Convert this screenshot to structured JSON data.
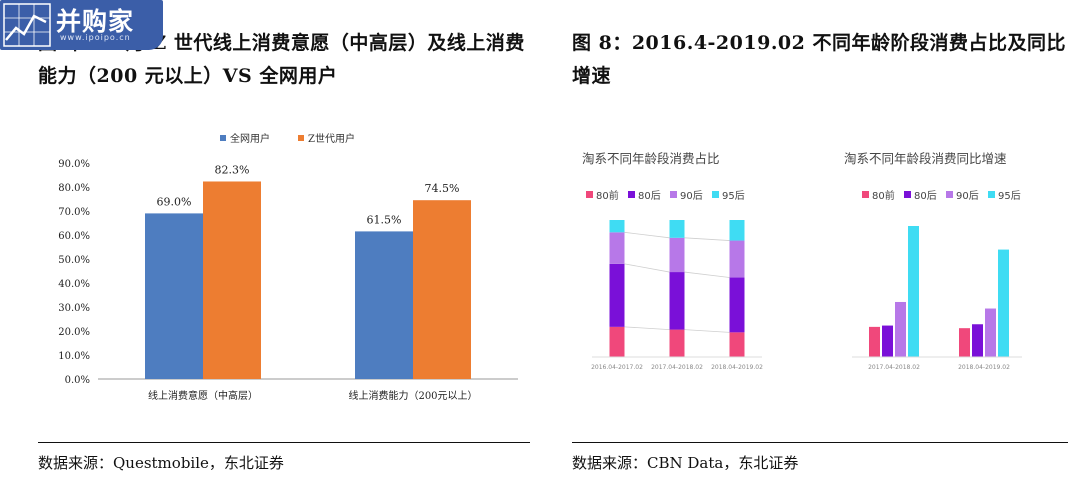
{
  "left": {
    "title": "图 年 11 月 Z 世代线上消费意愿（中高层）及线上消费能力（200 元以上）VS 全网用户",
    "source": "数据来源：Questmobile，东北证券"
  },
  "right": {
    "title": "图 8：2016.4-2019.02 不同年龄阶段消费占比及同比增速",
    "source": "数据来源：CBN Data，东北证券",
    "chart1_title": "淘系不同年龄段消费占比",
    "chart2_title": "淘系不同年龄段消费同比增速"
  },
  "logo": {
    "text": "并购家",
    "url": "www.ipoipo.cn"
  },
  "colors": {
    "all_users": "#4e7dc0",
    "z_users": "#ed7d31",
    "before80": "#f0487b",
    "post80": "#7a10d8",
    "post90": "#b778e8",
    "post95": "#3fdcf3",
    "logo_bg": "#3b5ea8"
  },
  "chart_data": [
    {
      "type": "bar",
      "categories": [
        "线上消费意愿（中高层）",
        "线上消费能力（200元以上）"
      ],
      "series": [
        {
          "name": "全网用户",
          "values": [
            69.0,
            61.5
          ]
        },
        {
          "name": "Z世代用户",
          "values": [
            82.3,
            74.5
          ]
        }
      ],
      "title": "",
      "xlabel": "",
      "ylabel": "",
      "ylim": [
        0,
        90
      ],
      "yticks": [
        "0.0%",
        "10.0%",
        "20.0%",
        "30.0%",
        "40.0%",
        "50.0%",
        "60.0%",
        "70.0%",
        "80.0%",
        "90.0%"
      ],
      "data_labels": [
        [
          "69.0%",
          "61.5%"
        ],
        [
          "82.3%",
          "74.5%"
        ]
      ],
      "legend": "top-center",
      "grid": false
    },
    {
      "type": "bar",
      "stacked": true,
      "title": "淘系不同年龄段消费占比",
      "categories": [
        "2016.04-2017.02",
        "2017.04-2018.02",
        "2018.04-2019.02"
      ],
      "series": [
        {
          "name": "80前",
          "values": [
            22,
            20,
            18
          ]
        },
        {
          "name": "80后",
          "values": [
            46,
            42,
            40
          ]
        },
        {
          "name": "90后",
          "values": [
            23,
            25,
            27
          ]
        },
        {
          "name": "95后",
          "values": [
            9,
            13,
            15
          ]
        }
      ],
      "ylim": [
        0,
        100
      ],
      "legend": "top-left",
      "grid": false
    },
    {
      "type": "bar",
      "title": "淘系不同年龄段消费同比增速",
      "categories": [
        "2017.04-2018.02",
        "2018.04-2019.02"
      ],
      "series": [
        {
          "name": "80前",
          "values": [
            23,
            22
          ]
        },
        {
          "name": "80后",
          "values": [
            24,
            25
          ]
        },
        {
          "name": "90后",
          "values": [
            42,
            37
          ]
        },
        {
          "name": "95后",
          "values": [
            100,
            82
          ]
        }
      ],
      "ylim": [
        0,
        110
      ],
      "legend": "top-left",
      "grid": false
    }
  ]
}
